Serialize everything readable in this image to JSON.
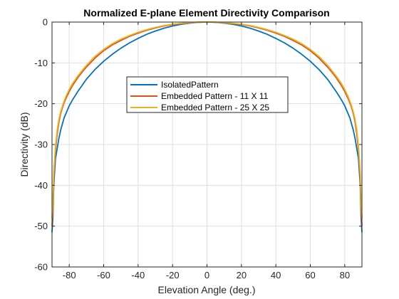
{
  "chart_data": {
    "type": "line",
    "title": "Normalized E-plane Element Directivity Comparison",
    "xlabel": "Elevation Angle (deg.)",
    "ylabel": "Directivity (dB)",
    "xlim": [
      -90,
      90
    ],
    "ylim": [
      -60,
      0
    ],
    "xticks": [
      -80,
      -60,
      -40,
      -20,
      0,
      20,
      40,
      60,
      80
    ],
    "yticks": [
      0,
      -10,
      -20,
      -30,
      -40,
      -50,
      -60
    ],
    "grid": true,
    "legend_position": "center",
    "x": [
      -90,
      -89.5,
      -89,
      -88,
      -87,
      -86,
      -85,
      -84,
      -83,
      -82,
      -80,
      -78,
      -75,
      -72,
      -70,
      -65,
      -60,
      -55,
      -50,
      -45,
      -40,
      -35,
      -30,
      -25,
      -20,
      -15,
      -10,
      -5,
      0,
      5,
      10,
      15,
      20,
      25,
      30,
      35,
      40,
      45,
      50,
      55,
      60,
      65,
      70,
      72,
      75,
      78,
      80,
      82,
      83,
      84,
      85,
      86,
      87,
      88,
      89,
      89.5,
      90
    ],
    "series": [
      {
        "name": "IsolatedPattern",
        "color": "#0072bd",
        "values": [
          -51.5,
          -48,
          -40,
          -33.5,
          -31,
          -28.5,
          -26.5,
          -25,
          -23.5,
          -22.5,
          -20.5,
          -19,
          -17,
          -15.2,
          -14,
          -11.6,
          -9.6,
          -7.9,
          -6.4,
          -5.1,
          -4.0,
          -3.0,
          -2.2,
          -1.5,
          -0.95,
          -0.55,
          -0.25,
          -0.06,
          0,
          -0.06,
          -0.25,
          -0.55,
          -0.95,
          -1.5,
          -2.2,
          -3.0,
          -4.0,
          -5.1,
          -6.4,
          -7.9,
          -9.6,
          -11.6,
          -14,
          -15.2,
          -17,
          -19,
          -20.5,
          -22.5,
          -23.5,
          -25,
          -26.5,
          -28.5,
          -31,
          -33.5,
          -40,
          -48,
          -51.5
        ]
      },
      {
        "name": "Embedded Pattern - 11 X 11",
        "color": "#d95319",
        "values": [
          -50,
          -46,
          -38,
          -31.5,
          -27.5,
          -24.5,
          -22.5,
          -21,
          -19.8,
          -18.8,
          -17,
          -15.5,
          -13.6,
          -12,
          -11,
          -8.8,
          -7,
          -5.6,
          -4.5,
          -3.5,
          -2.7,
          -2.0,
          -1.45,
          -0.95,
          -0.6,
          -0.35,
          -0.16,
          -0.04,
          0,
          -0.04,
          -0.16,
          -0.35,
          -0.6,
          -0.95,
          -1.45,
          -2.0,
          -2.7,
          -3.5,
          -4.5,
          -5.6,
          -7,
          -8.8,
          -11,
          -12,
          -13.6,
          -15.5,
          -17,
          -18.8,
          -19.8,
          -21,
          -22.5,
          -24.5,
          -27.5,
          -31.5,
          -38,
          -46,
          -50
        ]
      },
      {
        "name": "Embedded Pattern - 25 X 25",
        "color": "#edb120",
        "values": [
          -48,
          -44,
          -37,
          -30.5,
          -26.5,
          -23.8,
          -22,
          -20.6,
          -19.4,
          -18.3,
          -16.5,
          -15,
          -13.2,
          -11.6,
          -10.6,
          -8.4,
          -6.7,
          -5.3,
          -4.2,
          -3.3,
          -2.5,
          -1.85,
          -1.3,
          -0.85,
          -0.52,
          -0.3,
          -0.13,
          -0.03,
          0,
          -0.03,
          -0.13,
          -0.3,
          -0.52,
          -0.85,
          -1.3,
          -1.85,
          -2.5,
          -3.3,
          -4.2,
          -5.3,
          -6.7,
          -8.4,
          -10.6,
          -11.6,
          -13.2,
          -15,
          -16.5,
          -18.3,
          -19.4,
          -20.6,
          -22,
          -23.8,
          -26.5,
          -30.5,
          -37,
          -44,
          -48
        ]
      }
    ]
  }
}
